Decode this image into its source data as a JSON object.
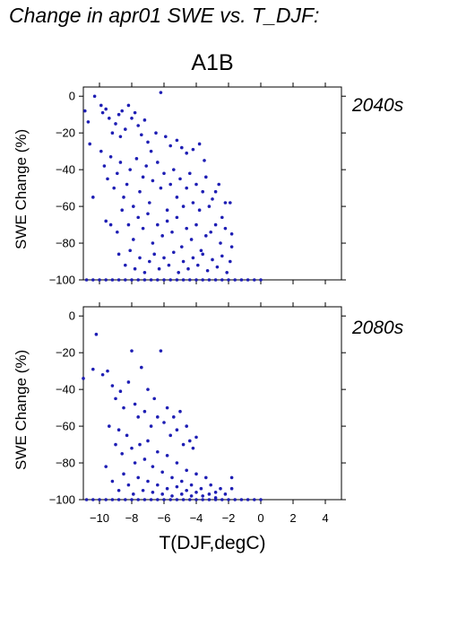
{
  "title": "Change in apr01 SWE vs. T_DJF:",
  "scenario": "A1B",
  "xlabel": "T(DJF,degC)",
  "colors": {
    "points": "#1e1eb4",
    "axes": "#000000"
  },
  "chart_data": [
    {
      "type": "scatter",
      "panel_label": "2040s",
      "ylabel": "SWE Change (%)",
      "xlabel": "",
      "xlim": [
        -11,
        5
      ],
      "ylim": [
        -100,
        5
      ],
      "xticks": [
        -10,
        -8,
        -6,
        -4,
        -2,
        0,
        2,
        4
      ],
      "yticks": [
        0,
        -20,
        -40,
        -60,
        -80,
        -100
      ],
      "xtick_labels_shown": false,
      "grid": false,
      "points": [
        [
          -10.9,
          -8
        ],
        [
          -10.7,
          -14
        ],
        [
          -10.6,
          -26
        ],
        [
          -10.3,
          0
        ],
        [
          -9.9,
          -5
        ],
        [
          -9.8,
          -9
        ],
        [
          -9.6,
          -7
        ],
        [
          -9.4,
          -12
        ],
        [
          -9.2,
          -20
        ],
        [
          -9.0,
          -15
        ],
        [
          -8.8,
          -10
        ],
        [
          -8.7,
          -22
        ],
        [
          -8.6,
          -8
        ],
        [
          -8.4,
          -18
        ],
        [
          -8.2,
          -5
        ],
        [
          -8.0,
          -12
        ],
        [
          -7.8,
          -9
        ],
        [
          -7.6,
          -16
        ],
        [
          -7.4,
          -21
        ],
        [
          -7.2,
          -13
        ],
        [
          -7.0,
          -25
        ],
        [
          -6.8,
          -30
        ],
        [
          -6.5,
          -20
        ],
        [
          -6.2,
          2
        ],
        [
          -5.9,
          -22
        ],
        [
          -5.6,
          -27
        ],
        [
          -5.2,
          -24
        ],
        [
          -4.9,
          -28
        ],
        [
          -4.6,
          -31
        ],
        [
          -4.2,
          -29
        ],
        [
          -3.8,
          -26
        ],
        [
          -3.5,
          -35
        ],
        [
          -9.9,
          -30
        ],
        [
          -9.7,
          -38
        ],
        [
          -9.5,
          -45
        ],
        [
          -9.3,
          -33
        ],
        [
          -9.1,
          -50
        ],
        [
          -8.9,
          -42
        ],
        [
          -8.7,
          -36
        ],
        [
          -8.5,
          -55
        ],
        [
          -8.3,
          -48
        ],
        [
          -8.1,
          -40
        ],
        [
          -7.9,
          -60
        ],
        [
          -7.7,
          -34
        ],
        [
          -7.5,
          -52
        ],
        [
          -7.3,
          -44
        ],
        [
          -7.1,
          -38
        ],
        [
          -6.9,
          -58
        ],
        [
          -6.7,
          -46
        ],
        [
          -6.4,
          -36
        ],
        [
          -6.2,
          -50
        ],
        [
          -6.0,
          -42
        ],
        [
          -5.8,
          -62
        ],
        [
          -5.6,
          -48
        ],
        [
          -5.4,
          -40
        ],
        [
          -5.2,
          -55
        ],
        [
          -5.0,
          -45
        ],
        [
          -4.8,
          -60
        ],
        [
          -4.6,
          -50
        ],
        [
          -4.4,
          -42
        ],
        [
          -4.2,
          -58
        ],
        [
          -4.0,
          -48
        ],
        [
          -3.8,
          -62
        ],
        [
          -3.6,
          -52
        ],
        [
          -3.4,
          -44
        ],
        [
          -3.2,
          -60
        ],
        [
          -3.0,
          -56
        ],
        [
          -2.8,
          -52
        ],
        [
          -2.6,
          -48
        ],
        [
          -2.4,
          -66
        ],
        [
          -2.2,
          -58
        ],
        [
          -10.4,
          -55
        ],
        [
          -9.6,
          -68
        ],
        [
          -8.9,
          -74
        ],
        [
          -8.6,
          -62
        ],
        [
          -8.2,
          -70
        ],
        [
          -7.9,
          -78
        ],
        [
          -7.6,
          -66
        ],
        [
          -7.3,
          -72
        ],
        [
          -7.0,
          -64
        ],
        [
          -6.7,
          -80
        ],
        [
          -6.4,
          -70
        ],
        [
          -6.1,
          -76
        ],
        [
          -5.8,
          -68
        ],
        [
          -5.5,
          -74
        ],
        [
          -5.2,
          -66
        ],
        [
          -4.9,
          -82
        ],
        [
          -4.6,
          -72
        ],
        [
          -4.3,
          -78
        ],
        [
          -4.0,
          -70
        ],
        [
          -3.7,
          -84
        ],
        [
          -3.4,
          -76
        ],
        [
          -3.1,
          -74
        ],
        [
          -2.8,
          -70
        ],
        [
          -2.5,
          -80
        ],
        [
          -2.2,
          -72
        ],
        [
          -1.9,
          -58
        ],
        [
          -1.8,
          -75
        ],
        [
          -9.3,
          -70
        ],
        [
          -8.8,
          -86
        ],
        [
          -8.4,
          -92
        ],
        [
          -8.1,
          -84
        ],
        [
          -7.8,
          -94
        ],
        [
          -7.5,
          -88
        ],
        [
          -7.2,
          -96
        ],
        [
          -6.9,
          -90
        ],
        [
          -6.6,
          -86
        ],
        [
          -6.3,
          -94
        ],
        [
          -6.0,
          -88
        ],
        [
          -5.7,
          -92
        ],
        [
          -5.4,
          -85
        ],
        [
          -5.1,
          -96
        ],
        [
          -4.8,
          -90
        ],
        [
          -4.5,
          -94
        ],
        [
          -4.2,
          -88
        ],
        [
          -3.9,
          -92
        ],
        [
          -3.6,
          -86
        ],
        [
          -3.3,
          -95
        ],
        [
          -3.0,
          -89
        ],
        [
          -2.7,
          -93
        ],
        [
          -2.4,
          -87
        ],
        [
          -2.1,
          -96
        ],
        [
          -1.8,
          -82
        ],
        [
          -1.9,
          -90
        ],
        [
          -10.8,
          -100
        ],
        [
          -10.4,
          -100
        ],
        [
          -10.0,
          -100
        ],
        [
          -9.6,
          -100
        ],
        [
          -9.2,
          -100
        ],
        [
          -8.8,
          -100
        ],
        [
          -8.4,
          -100
        ],
        [
          -8.0,
          -100
        ],
        [
          -7.6,
          -100
        ],
        [
          -7.2,
          -100
        ],
        [
          -6.8,
          -100
        ],
        [
          -6.4,
          -100
        ],
        [
          -6.0,
          -100
        ],
        [
          -5.6,
          -100
        ],
        [
          -5.2,
          -100
        ],
        [
          -4.8,
          -100
        ],
        [
          -4.4,
          -100
        ],
        [
          -4.0,
          -100
        ],
        [
          -3.6,
          -100
        ],
        [
          -3.2,
          -100
        ],
        [
          -2.8,
          -100
        ],
        [
          -2.4,
          -100
        ],
        [
          -2.0,
          -100
        ],
        [
          -1.6,
          -100
        ],
        [
          -1.2,
          -100
        ],
        [
          -0.8,
          -100
        ],
        [
          -0.4,
          -100
        ],
        [
          0.0,
          -100
        ]
      ]
    },
    {
      "type": "scatter",
      "panel_label": "2080s",
      "ylabel": "SWE Change (%)",
      "xlabel": "T(DJF,degC)",
      "xlim": [
        -11,
        5
      ],
      "ylim": [
        -100,
        5
      ],
      "xticks": [
        -10,
        -8,
        -6,
        -4,
        -2,
        0,
        2,
        4
      ],
      "yticks": [
        0,
        -20,
        -40,
        -60,
        -80,
        -100
      ],
      "xtick_labels_shown": true,
      "grid": false,
      "points": [
        [
          -11.0,
          -34
        ],
        [
          -10.2,
          -10
        ],
        [
          -10.4,
          -29
        ],
        [
          -9.8,
          -32
        ],
        [
          -9.5,
          -30
        ],
        [
          -9.2,
          -38
        ],
        [
          -9.0,
          -45
        ],
        [
          -8.7,
          -41
        ],
        [
          -8.5,
          -50
        ],
        [
          -8.2,
          -36
        ],
        [
          -8.0,
          -19
        ],
        [
          -7.8,
          -48
        ],
        [
          -7.6,
          -55
        ],
        [
          -7.4,
          -28
        ],
        [
          -7.2,
          -52
        ],
        [
          -7.0,
          -40
        ],
        [
          -6.8,
          -60
        ],
        [
          -6.6,
          -45
        ],
        [
          -6.4,
          -55
        ],
        [
          -6.2,
          -19
        ],
        [
          -6.0,
          -58
        ],
        [
          -5.8,
          -50
        ],
        [
          -5.6,
          -65
        ],
        [
          -5.4,
          -55
        ],
        [
          -5.2,
          -62
        ],
        [
          -5.0,
          -52
        ],
        [
          -4.8,
          -70
        ],
        [
          -4.6,
          -60
        ],
        [
          -4.4,
          -68
        ],
        [
          -4.2,
          -72
        ],
        [
          -4.0,
          -66
        ],
        [
          -9.4,
          -60
        ],
        [
          -9.0,
          -70
        ],
        [
          -8.8,
          -62
        ],
        [
          -8.6,
          -75
        ],
        [
          -8.3,
          -65
        ],
        [
          -8.0,
          -72
        ],
        [
          -7.8,
          -80
        ],
        [
          -7.5,
          -70
        ],
        [
          -7.2,
          -78
        ],
        [
          -7.0,
          -68
        ],
        [
          -6.7,
          -82
        ],
        [
          -6.4,
          -74
        ],
        [
          -6.1,
          -85
        ],
        [
          -5.8,
          -76
        ],
        [
          -5.5,
          -88
        ],
        [
          -5.2,
          -80
        ],
        [
          -4.9,
          -90
        ],
        [
          -4.6,
          -84
        ],
        [
          -4.3,
          -92
        ],
        [
          -4.0,
          -86
        ],
        [
          -3.7,
          -94
        ],
        [
          -3.4,
          -88
        ],
        [
          -3.1,
          -92
        ],
        [
          -2.8,
          -96
        ],
        [
          -2.5,
          -94
        ],
        [
          -2.2,
          -97
        ],
        [
          -1.8,
          -88
        ],
        [
          -1.8,
          -94
        ],
        [
          -9.6,
          -82
        ],
        [
          -9.2,
          -90
        ],
        [
          -8.8,
          -95
        ],
        [
          -8.5,
          -86
        ],
        [
          -8.2,
          -92
        ],
        [
          -7.9,
          -97
        ],
        [
          -7.6,
          -88
        ],
        [
          -7.3,
          -95
        ],
        [
          -7.0,
          -90
        ],
        [
          -6.7,
          -96
        ],
        [
          -6.4,
          -92
        ],
        [
          -6.1,
          -97
        ],
        [
          -5.8,
          -94
        ],
        [
          -5.5,
          -98
        ],
        [
          -5.2,
          -93
        ],
        [
          -4.9,
          -97
        ],
        [
          -4.6,
          -95
        ],
        [
          -4.3,
          -98
        ],
        [
          -4.0,
          -96
        ],
        [
          -3.6,
          -98
        ],
        [
          -3.2,
          -97
        ],
        [
          -2.8,
          -99
        ],
        [
          -10.8,
          -100
        ],
        [
          -10.4,
          -100
        ],
        [
          -10.0,
          -100
        ],
        [
          -9.6,
          -100
        ],
        [
          -9.2,
          -100
        ],
        [
          -8.8,
          -100
        ],
        [
          -8.4,
          -100
        ],
        [
          -8.0,
          -100
        ],
        [
          -7.6,
          -100
        ],
        [
          -7.2,
          -100
        ],
        [
          -6.8,
          -100
        ],
        [
          -6.4,
          -100
        ],
        [
          -6.0,
          -100
        ],
        [
          -5.6,
          -100
        ],
        [
          -5.2,
          -100
        ],
        [
          -4.8,
          -100
        ],
        [
          -4.4,
          -100
        ],
        [
          -4.0,
          -100
        ],
        [
          -3.6,
          -100
        ],
        [
          -3.2,
          -100
        ],
        [
          -2.8,
          -100
        ],
        [
          -2.4,
          -100
        ],
        [
          -2.0,
          -100
        ],
        [
          -1.6,
          -100
        ],
        [
          -1.2,
          -100
        ],
        [
          -0.8,
          -100
        ],
        [
          -0.4,
          -100
        ],
        [
          0.0,
          -100
        ]
      ]
    }
  ]
}
